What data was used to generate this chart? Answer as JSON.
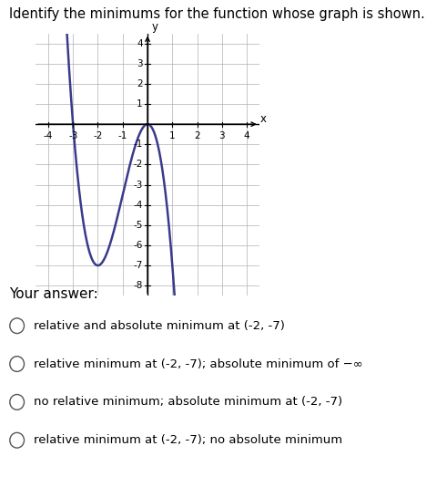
{
  "title": "Identify the minimums for the function whose graph is shown.",
  "title_fontsize": 10.5,
  "graph_xlim": [
    -4.5,
    4.5
  ],
  "graph_ylim": [
    -8.5,
    4.5
  ],
  "xticks": [
    -4,
    -3,
    -2,
    -1,
    1,
    2,
    3,
    4
  ],
  "yticks": [
    -8,
    -7,
    -6,
    -5,
    -4,
    -3,
    -2,
    -1,
    1,
    2,
    3,
    4
  ],
  "xlabel": "x",
  "ylabel": "y",
  "curve_color": "#3a3a8c",
  "curve_linewidth": 1.8,
  "background_color": "#ffffff",
  "answer_section_color": "#e0e0e0",
  "answer_section_label": "Your answer:",
  "choices": [
    "relative and absolute minimum at (-2, -7)",
    "relative minimum at (-2, -7); absolute minimum of −∞",
    "no relative minimum; absolute minimum at (-2, -7)",
    "relative minimum at (-2, -7); no absolute minimum"
  ],
  "grid_color": "#b0b0b0",
  "grid_linewidth": 0.5,
  "poly_k": -5.25,
  "poly_d": 0.0
}
